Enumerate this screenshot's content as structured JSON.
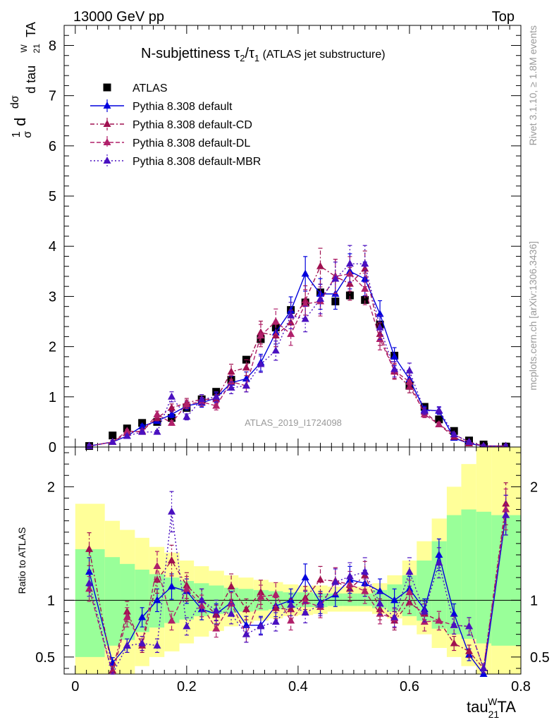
{
  "header": {
    "energy_label": "13000 GeV pp",
    "process_label": "Top",
    "title_main": "N-subjettiness ",
    "title_tau2": "τ",
    "title_tau2_sub": "2",
    "title_slash": "/",
    "title_tau1": "τ",
    "title_tau1_sub": "1",
    "title_paren": " (ATLAS jet substructure)",
    "rivet_label": "Rivet 3.1.10, ≥ 1.8M events",
    "mcplots_label": "mcplots.cern.ch [arXiv:1306.3436]",
    "analysis_label": "ATLAS_2019_I1724098"
  },
  "axes": {
    "ylabel_main": "1/σ dσ/d tau21^W TA",
    "ylabel_ratio": "Ratio to ATLAS",
    "xlabel_base": "tau",
    "xlabel_sub": "21",
    "xlabel_sup": "W",
    "xlabel_tail": "TA"
  },
  "legend": [
    {
      "name": "ATLAS",
      "marker": "square",
      "color": "#000000",
      "dash": "none"
    },
    {
      "name": "Pythia 8.308 default",
      "marker": "triangle",
      "color": "#0000dd",
      "dash": "solid"
    },
    {
      "name": "Pythia 8.308 default-CD",
      "marker": "triangle",
      "color": "#a01050",
      "dash": "dashdot"
    },
    {
      "name": "Pythia 8.308 default-DL",
      "marker": "triangle",
      "color": "#b0206a",
      "dash": "dash"
    },
    {
      "name": "Pythia 8.308 default-MBR",
      "marker": "triangle",
      "color": "#4a10c0",
      "dash": "dot"
    }
  ],
  "chart_data": [
    {
      "type": "scatter",
      "panel": "main",
      "xlim": [
        -0.02,
        0.8
      ],
      "ylim": [
        0,
        8.4
      ],
      "xticks": [
        "0",
        "0.2",
        "0.4",
        "0.6",
        "0.8"
      ],
      "yticks": [
        "0",
        "1",
        "2",
        "3",
        "4",
        "5",
        "6",
        "7",
        "8"
      ],
      "x": [
        0.025,
        0.067,
        0.093,
        0.12,
        0.147,
        0.173,
        0.2,
        0.227,
        0.253,
        0.28,
        0.307,
        0.333,
        0.36,
        0.387,
        0.413,
        0.44,
        0.467,
        0.493,
        0.52,
        0.547,
        0.573,
        0.6,
        0.627,
        0.653,
        0.68,
        0.707,
        0.733,
        0.773
      ],
      "series": [
        {
          "name": "ATLAS",
          "values": [
            0.02,
            0.23,
            0.37,
            0.48,
            0.5,
            0.58,
            0.78,
            0.95,
            1.1,
            1.34,
            1.74,
            2.15,
            2.38,
            2.73,
            2.88,
            3.08,
            2.9,
            3.02,
            2.93,
            2.44,
            1.82,
            1.22,
            0.8,
            0.55,
            0.32,
            0.13,
            0.05,
            0.01
          ]
        },
        {
          "name": "Pythia 8.308 default",
          "values": [
            0.02,
            0.1,
            0.22,
            0.41,
            0.52,
            0.65,
            0.82,
            0.88,
            0.98,
            1.28,
            1.36,
            1.68,
            2.28,
            2.72,
            3.45,
            3.05,
            3.05,
            3.5,
            3.35,
            2.65,
            1.8,
            1.35,
            0.74,
            0.72,
            0.18,
            0.07,
            0.02,
            0.02
          ]
        },
        {
          "name": "Pythia 8.308 default-CD",
          "values": [
            0.02,
            0.1,
            0.28,
            0.32,
            0.58,
            0.78,
            0.88,
            0.95,
            0.95,
            1.5,
            1.58,
            2.28,
            2.22,
            2.48,
            2.92,
            3.6,
            3.4,
            3.25,
            3.55,
            2.25,
            1.5,
            1.2,
            0.7,
            0.45,
            0.2,
            0.07,
            0.02,
            0.02
          ]
        },
        {
          "name": "Pythia 8.308 default-DL",
          "values": [
            0.02,
            0.1,
            0.32,
            0.3,
            0.65,
            0.48,
            0.85,
            0.9,
            0.82,
            1.3,
            1.22,
            2.22,
            2.5,
            2.25,
            2.85,
            2.9,
            3.4,
            3.45,
            3.15,
            2.15,
            1.52,
            1.3,
            0.65,
            0.45,
            0.25,
            0.1,
            0.02,
            0.02
          ]
        },
        {
          "name": "Pythia 8.308 default-MBR",
          "values": [
            0.02,
            0.1,
            0.22,
            0.3,
            0.3,
            1.0,
            0.6,
            0.95,
            1.0,
            1.18,
            1.22,
            1.65,
            1.92,
            2.62,
            2.55,
            2.95,
            3.35,
            3.65,
            3.65,
            2.38,
            1.55,
            1.52,
            0.72,
            0.73,
            0.25,
            0.1,
            0.02,
            0.02
          ]
        }
      ]
    },
    {
      "type": "scatter",
      "panel": "ratio",
      "xlim": [
        -0.02,
        0.8
      ],
      "ylim": [
        0.35,
        2.35
      ],
      "yticks": [
        "0.5",
        "1",
        "2"
      ],
      "reference": 1,
      "x": [
        0.025,
        0.067,
        0.093,
        0.12,
        0.147,
        0.173,
        0.2,
        0.227,
        0.253,
        0.28,
        0.307,
        0.333,
        0.36,
        0.387,
        0.413,
        0.44,
        0.467,
        0.493,
        0.52,
        0.547,
        0.573,
        0.6,
        0.627,
        0.653,
        0.68,
        0.707,
        0.733,
        0.773
      ],
      "bands": {
        "x_edges": [
          0,
          0.053,
          0.08,
          0.107,
          0.133,
          0.16,
          0.187,
          0.213,
          0.24,
          0.267,
          0.293,
          0.32,
          0.347,
          0.373,
          0.4,
          0.427,
          0.453,
          0.48,
          0.507,
          0.533,
          0.56,
          0.587,
          0.613,
          0.64,
          0.667,
          0.693,
          0.72,
          0.747,
          0.8
        ],
        "yellow_lo": [
          0.35,
          0.35,
          0.35,
          0.42,
          0.5,
          0.55,
          0.62,
          0.68,
          0.73,
          0.77,
          0.8,
          0.82,
          0.84,
          0.86,
          0.87,
          0.88,
          0.9,
          0.9,
          0.9,
          0.88,
          0.84,
          0.78,
          0.7,
          0.58,
          0.5,
          0.42,
          0.35,
          0.35
        ],
        "yellow_hi": [
          1.85,
          1.7,
          1.62,
          1.55,
          1.47,
          1.42,
          1.35,
          1.3,
          1.26,
          1.22,
          1.2,
          1.18,
          1.16,
          1.14,
          1.13,
          1.13,
          1.12,
          1.12,
          1.12,
          1.15,
          1.22,
          1.35,
          1.52,
          1.72,
          2.0,
          2.2,
          2.35,
          2.35
        ],
        "green_lo": [
          0.5,
          0.6,
          0.65,
          0.72,
          0.76,
          0.8,
          0.83,
          0.86,
          0.88,
          0.89,
          0.9,
          0.91,
          0.92,
          0.93,
          0.94,
          0.94,
          0.95,
          0.95,
          0.95,
          0.93,
          0.9,
          0.86,
          0.82,
          0.75,
          0.7,
          0.66,
          0.62,
          0.6
        ],
        "green_hi": [
          1.45,
          1.38,
          1.32,
          1.27,
          1.23,
          1.2,
          1.17,
          1.15,
          1.13,
          1.11,
          1.1,
          1.09,
          1.08,
          1.07,
          1.07,
          1.06,
          1.06,
          1.06,
          1.06,
          1.09,
          1.14,
          1.22,
          1.35,
          1.52,
          1.75,
          1.8,
          1.78,
          1.75
        ]
      },
      "series": [
        {
          "name": "Pythia 8.308 default",
          "values": [
            1.25,
            0.45,
            0.6,
            0.85,
            1.0,
            1.12,
            1.08,
            0.92,
            0.88,
            0.98,
            0.78,
            0.78,
            0.95,
            1.0,
            1.2,
            0.98,
            1.05,
            1.18,
            1.15,
            1.08,
            1.0,
            1.1,
            0.92,
            1.4,
            0.88,
            0.52,
            0.35,
            1.75
          ]
        },
        {
          "name": "Pythia 8.308 default-CD",
          "values": [
            1.45,
            0.38,
            0.9,
            0.6,
            1.18,
            1.35,
            1.13,
            1.0,
            0.87,
            1.12,
            0.92,
            1.07,
            0.93,
            0.92,
            1.02,
            1.18,
            1.17,
            1.1,
            1.22,
            0.92,
            0.82,
            0.98,
            0.88,
            0.82,
            0.62,
            0.55,
            0.4,
            1.85
          ]
        },
        {
          "name": "Pythia 8.308 default-DL",
          "values": [
            1.1,
            0.3,
            0.85,
            0.62,
            1.3,
            0.82,
            1.1,
            0.95,
            0.75,
            0.97,
            0.7,
            1.03,
            1.05,
            0.82,
            0.99,
            0.94,
            1.17,
            1.14,
            1.08,
            0.88,
            0.84,
            1.07,
            0.81,
            0.82,
            0.78,
            0.77,
            0.4,
            1.8
          ]
        },
        {
          "name": "Pythia 8.308 default-MBR",
          "values": [
            1.15,
            0.3,
            0.6,
            0.62,
            0.6,
            1.78,
            0.77,
            1.0,
            0.91,
            0.88,
            0.7,
            0.77,
            0.81,
            0.96,
            0.89,
            0.96,
            1.16,
            1.21,
            1.25,
            0.97,
            0.85,
            1.25,
            0.9,
            1.33,
            0.78,
            0.77,
            0.4,
            1.75
          ]
        }
      ]
    }
  ],
  "colors": {
    "yellow_band": "#ffff99",
    "green_band": "#99ff99"
  }
}
